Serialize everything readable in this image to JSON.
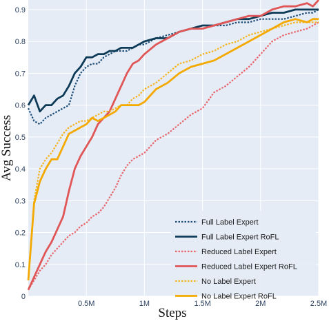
{
  "chart_data": {
    "type": "line",
    "xlabel": "Steps",
    "ylabel": "Avg Success",
    "xlim": [
      0,
      2500000
    ],
    "ylim": [
      0,
      0.93
    ],
    "x_ticks": [
      {
        "value": 500000,
        "label": "0.5M"
      },
      {
        "value": 1000000,
        "label": "1M"
      },
      {
        "value": 1500000,
        "label": "1.5M"
      },
      {
        "value": 2000000,
        "label": "2M"
      },
      {
        "value": 2500000,
        "label": "2.5M"
      }
    ],
    "y_ticks": [
      {
        "value": 0,
        "label": "0"
      },
      {
        "value": 0.1,
        "label": "0.1"
      },
      {
        "value": 0.2,
        "label": "0.2"
      },
      {
        "value": 0.3,
        "label": "0.3"
      },
      {
        "value": 0.4,
        "label": "0.4"
      },
      {
        "value": 0.5,
        "label": "0.5"
      },
      {
        "value": 0.6,
        "label": "0.6"
      },
      {
        "value": 0.7,
        "label": "0.7"
      },
      {
        "value": 0.8,
        "label": "0.8"
      },
      {
        "value": 0.9,
        "label": "0.9"
      }
    ],
    "grid": true,
    "legend_position": "bottom-right",
    "colors": {
      "plot_bg": "#e5ecf6",
      "grid": "#ffffff"
    },
    "series": [
      {
        "name": "Full Label Expert",
        "color": "#1f4e79",
        "dash": "dotted",
        "x": [
          0,
          50000,
          100000,
          150000,
          200000,
          250000,
          300000,
          350000,
          400000,
          450000,
          500000,
          550000,
          600000,
          650000,
          700000,
          750000,
          800000,
          850000,
          900000,
          950000,
          1000000,
          1100000,
          1200000,
          1300000,
          1400000,
          1500000,
          1600000,
          1700000,
          1800000,
          1900000,
          2000000,
          2100000,
          2200000,
          2300000,
          2400000,
          2450000,
          2500000
        ],
        "y": [
          0.59,
          0.55,
          0.54,
          0.56,
          0.57,
          0.58,
          0.59,
          0.6,
          0.66,
          0.7,
          0.72,
          0.73,
          0.73,
          0.75,
          0.76,
          0.77,
          0.77,
          0.77,
          0.78,
          0.79,
          0.79,
          0.81,
          0.82,
          0.83,
          0.84,
          0.84,
          0.85,
          0.85,
          0.86,
          0.86,
          0.87,
          0.87,
          0.87,
          0.88,
          0.89,
          0.89,
          0.9
        ]
      },
      {
        "name": "Full Label Expert RoFL",
        "color": "#0d3a56",
        "dash": "solid",
        "x": [
          0,
          50000,
          100000,
          150000,
          200000,
          250000,
          300000,
          350000,
          400000,
          450000,
          500000,
          550000,
          600000,
          650000,
          700000,
          750000,
          800000,
          850000,
          900000,
          950000,
          1000000,
          1100000,
          1200000,
          1300000,
          1400000,
          1500000,
          1600000,
          1700000,
          1800000,
          1900000,
          2000000,
          2100000,
          2200000,
          2300000,
          2400000,
          2450000,
          2500000
        ],
        "y": [
          0.6,
          0.63,
          0.58,
          0.6,
          0.6,
          0.62,
          0.63,
          0.66,
          0.7,
          0.72,
          0.75,
          0.75,
          0.76,
          0.76,
          0.77,
          0.77,
          0.78,
          0.78,
          0.78,
          0.79,
          0.8,
          0.81,
          0.81,
          0.83,
          0.84,
          0.85,
          0.85,
          0.86,
          0.87,
          0.87,
          0.88,
          0.89,
          0.89,
          0.9,
          0.9,
          0.9,
          0.9
        ]
      },
      {
        "name": "Reduced Label Expert",
        "color": "#e8666c",
        "dash": "dotted",
        "x": [
          0,
          50000,
          100000,
          150000,
          200000,
          250000,
          300000,
          350000,
          400000,
          450000,
          500000,
          550000,
          600000,
          650000,
          700000,
          750000,
          800000,
          850000,
          900000,
          950000,
          1000000,
          1100000,
          1200000,
          1300000,
          1400000,
          1500000,
          1600000,
          1700000,
          1800000,
          1900000,
          2000000,
          2100000,
          2200000,
          2300000,
          2400000,
          2450000,
          2500000
        ],
        "y": [
          0.02,
          0.05,
          0.08,
          0.1,
          0.13,
          0.15,
          0.17,
          0.19,
          0.2,
          0.22,
          0.23,
          0.25,
          0.26,
          0.28,
          0.31,
          0.34,
          0.38,
          0.41,
          0.43,
          0.44,
          0.45,
          0.49,
          0.51,
          0.54,
          0.57,
          0.59,
          0.64,
          0.66,
          0.69,
          0.72,
          0.76,
          0.8,
          0.82,
          0.83,
          0.84,
          0.85,
          0.86
        ]
      },
      {
        "name": "Reduced Label Expert RoFL",
        "color": "#e05656",
        "dash": "solid",
        "x": [
          0,
          50000,
          100000,
          150000,
          200000,
          250000,
          300000,
          350000,
          400000,
          450000,
          500000,
          550000,
          600000,
          650000,
          700000,
          750000,
          800000,
          850000,
          900000,
          950000,
          1000000,
          1100000,
          1200000,
          1300000,
          1400000,
          1500000,
          1600000,
          1700000,
          1800000,
          1900000,
          2000000,
          2100000,
          2200000,
          2300000,
          2400000,
          2450000,
          2500000
        ],
        "y": [
          0.02,
          0.06,
          0.1,
          0.14,
          0.17,
          0.21,
          0.25,
          0.33,
          0.4,
          0.44,
          0.47,
          0.5,
          0.54,
          0.56,
          0.58,
          0.62,
          0.66,
          0.7,
          0.73,
          0.74,
          0.76,
          0.79,
          0.81,
          0.83,
          0.84,
          0.84,
          0.85,
          0.86,
          0.87,
          0.88,
          0.88,
          0.9,
          0.91,
          0.91,
          0.92,
          0.91,
          0.93
        ]
      },
      {
        "name": "No Label Expert",
        "color": "#f5b41e",
        "dash": "dotted",
        "x": [
          0,
          50000,
          100000,
          150000,
          200000,
          250000,
          300000,
          350000,
          400000,
          450000,
          500000,
          550000,
          600000,
          650000,
          700000,
          750000,
          800000,
          850000,
          900000,
          950000,
          1000000,
          1100000,
          1200000,
          1300000,
          1400000,
          1500000,
          1600000,
          1700000,
          1800000,
          1900000,
          2000000,
          2100000,
          2200000,
          2300000,
          2400000,
          2450000,
          2500000
        ],
        "y": [
          0.05,
          0.3,
          0.4,
          0.43,
          0.45,
          0.48,
          0.51,
          0.53,
          0.54,
          0.55,
          0.55,
          0.56,
          0.57,
          0.58,
          0.58,
          0.59,
          0.6,
          0.6,
          0.62,
          0.63,
          0.65,
          0.67,
          0.7,
          0.73,
          0.74,
          0.76,
          0.77,
          0.79,
          0.8,
          0.82,
          0.83,
          0.84,
          0.85,
          0.86,
          0.86,
          0.86,
          0.86
        ]
      },
      {
        "name": "No Label Expert RoFL",
        "color": "#f4a900",
        "dash": "solid",
        "x": [
          0,
          50000,
          100000,
          150000,
          200000,
          250000,
          300000,
          350000,
          400000,
          450000,
          500000,
          550000,
          600000,
          650000,
          700000,
          750000,
          800000,
          850000,
          900000,
          950000,
          1000000,
          1100000,
          1200000,
          1300000,
          1400000,
          1500000,
          1600000,
          1700000,
          1800000,
          1900000,
          2000000,
          2100000,
          2200000,
          2300000,
          2400000,
          2450000,
          2500000
        ],
        "y": [
          0.05,
          0.29,
          0.36,
          0.4,
          0.43,
          0.43,
          0.47,
          0.51,
          0.52,
          0.53,
          0.54,
          0.56,
          0.55,
          0.56,
          0.57,
          0.58,
          0.6,
          0.6,
          0.6,
          0.6,
          0.61,
          0.65,
          0.67,
          0.7,
          0.72,
          0.73,
          0.74,
          0.76,
          0.78,
          0.8,
          0.82,
          0.84,
          0.86,
          0.87,
          0.86,
          0.87,
          0.87
        ]
      }
    ]
  }
}
